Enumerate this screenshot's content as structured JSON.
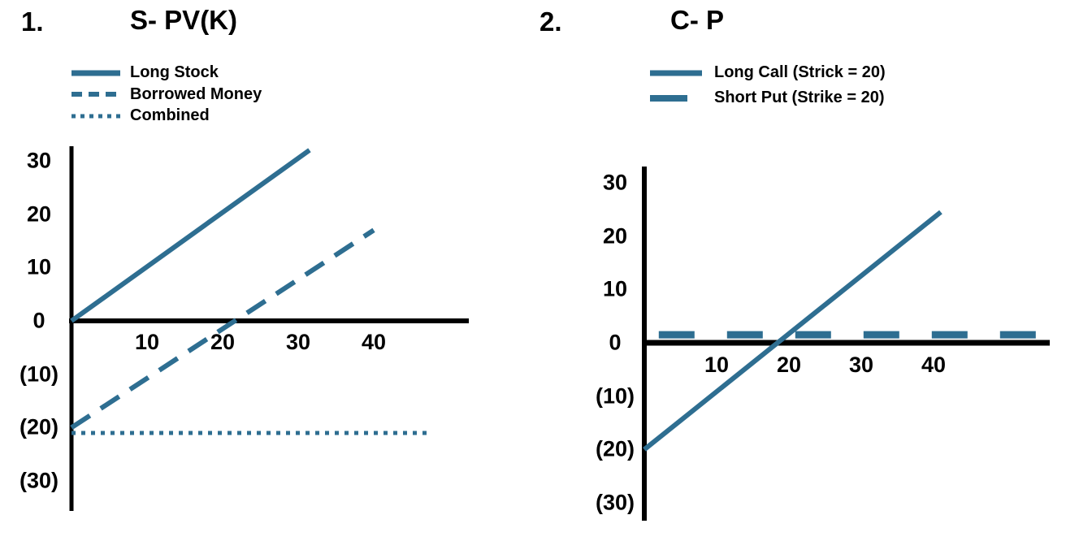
{
  "colors": {
    "series": "#2e6e91",
    "axis": "#000000",
    "text": "#000000",
    "background": "#ffffff"
  },
  "chart_data": [
    {
      "type": "line",
      "index_label": "1.",
      "title": "S- PV(K)",
      "xlabel": "",
      "ylabel": "",
      "xlim": [
        0,
        53
      ],
      "ylim": [
        -35,
        33
      ],
      "grid": false,
      "legend_position": "top-left",
      "x_ticks": [
        {
          "value": 10,
          "label": "10"
        },
        {
          "value": 20,
          "label": "20"
        },
        {
          "value": 30,
          "label": "30"
        },
        {
          "value": 40,
          "label": "40"
        }
      ],
      "y_ticks": [
        {
          "value": 30,
          "label": "30"
        },
        {
          "value": 20,
          "label": "20"
        },
        {
          "value": 10,
          "label": "10"
        },
        {
          "value": 0,
          "label": "0"
        },
        {
          "value": -10,
          "label": "(10)"
        },
        {
          "value": -20,
          "label": "(20)"
        },
        {
          "value": -30,
          "label": "(30)"
        }
      ],
      "series": [
        {
          "name": "Long Stock",
          "style": "solid",
          "points": [
            [
              0,
              0
            ],
            [
              31.5,
              32
            ]
          ]
        },
        {
          "name": "Borrowed Money",
          "style": "dashed",
          "points": [
            [
              0,
              -20
            ],
            [
              40,
              17
            ]
          ]
        },
        {
          "name": "Combined",
          "style": "dotted",
          "points": [
            [
              0,
              -21
            ],
            [
              47,
              -21
            ]
          ]
        }
      ]
    },
    {
      "type": "line",
      "index_label": "2.",
      "title": "C- P",
      "xlabel": "",
      "ylabel": "",
      "xlim": [
        0,
        56
      ],
      "ylim": [
        -33,
        33
      ],
      "grid": false,
      "legend_position": "top-left",
      "x_ticks": [
        {
          "value": 10,
          "label": "10"
        },
        {
          "value": 20,
          "label": "20"
        },
        {
          "value": 30,
          "label": "30"
        },
        {
          "value": 40,
          "label": "40"
        }
      ],
      "y_ticks": [
        {
          "value": 30,
          "label": "30"
        },
        {
          "value": 20,
          "label": "20"
        },
        {
          "value": 10,
          "label": "10"
        },
        {
          "value": 0,
          "label": "0"
        },
        {
          "value": -10,
          "label": "(10)"
        },
        {
          "value": -20,
          "label": "(20)"
        },
        {
          "value": -30,
          "label": "(30)"
        }
      ],
      "series": [
        {
          "name": "Long Call (Strick = 20)",
          "style": "solid",
          "points": [
            [
              0,
              -20
            ],
            [
              41,
              24.5
            ]
          ]
        },
        {
          "name": "Short Put (Strike = 20)",
          "style": "dashed-thick",
          "points": [
            [
              2,
              1.5
            ],
            [
              56,
              1.5
            ]
          ]
        }
      ]
    }
  ]
}
